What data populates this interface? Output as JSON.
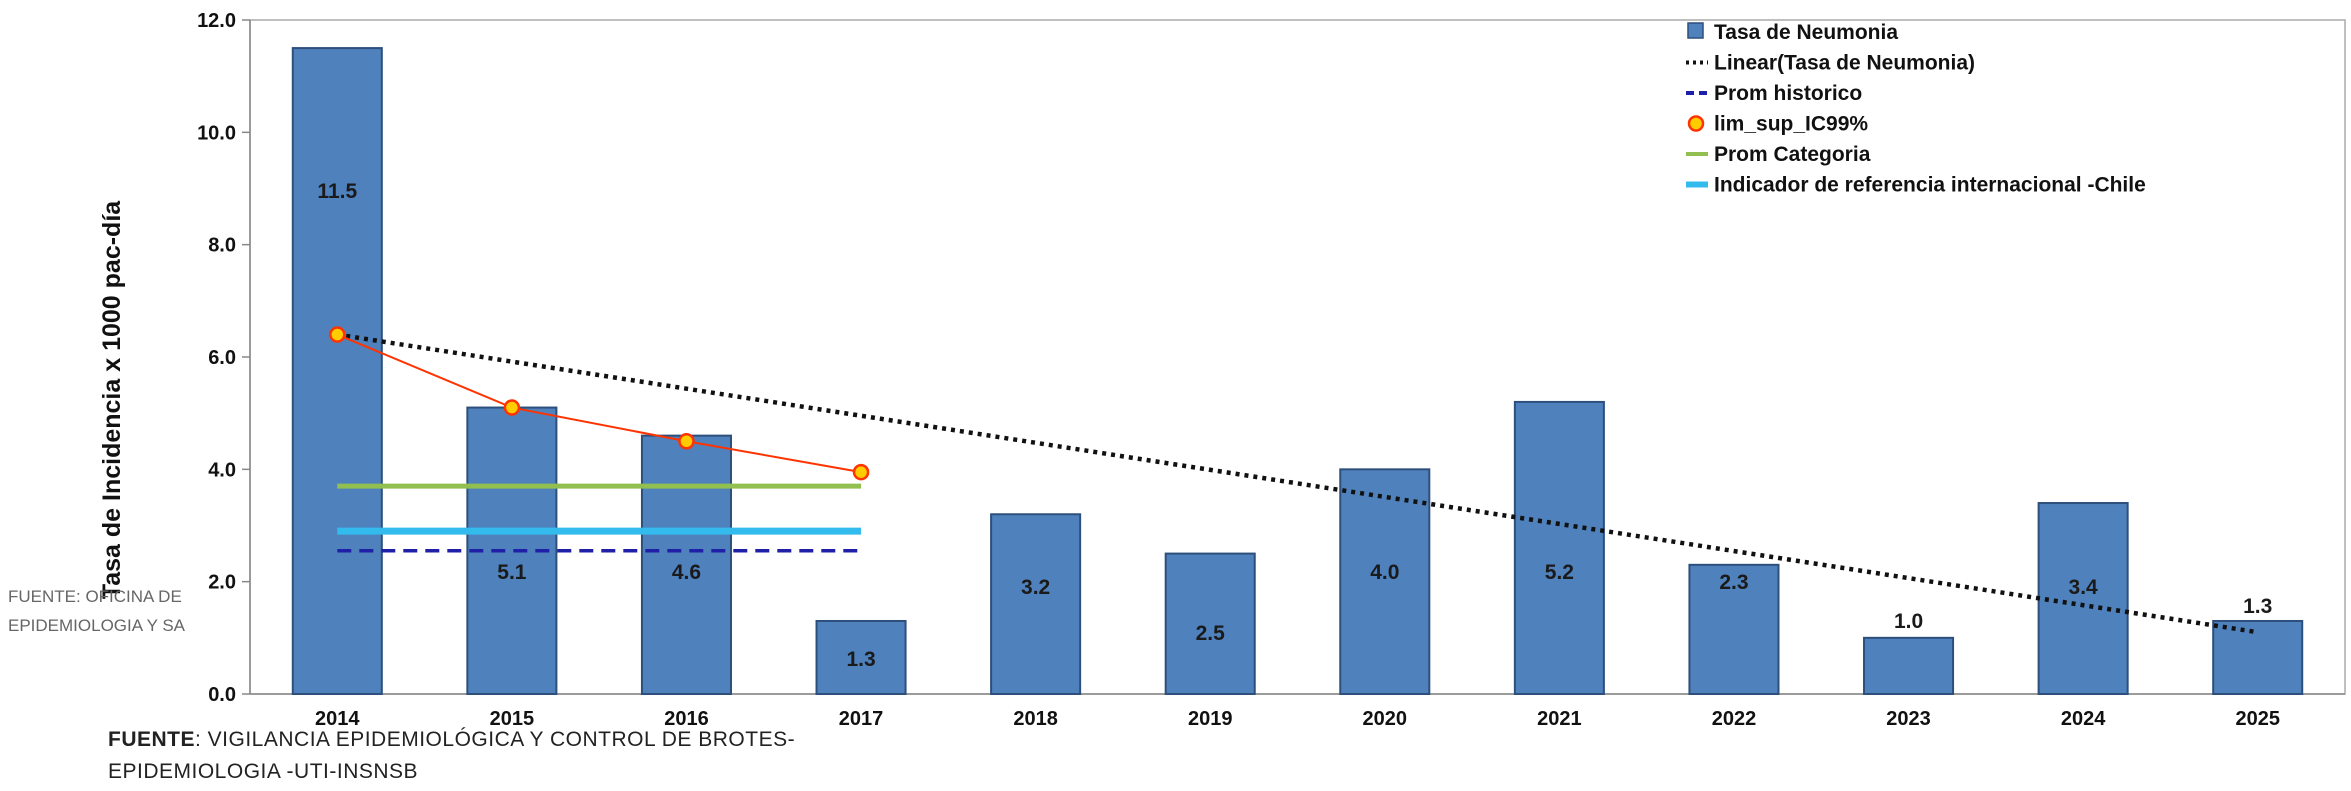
{
  "chart_data": {
    "type": "bar",
    "ylabel": "Tasa de Incidencia x 1000 pac-día",
    "ylim": [
      0,
      12
    ],
    "yticks": [
      "0.0",
      "2.0",
      "4.0",
      "6.0",
      "8.0",
      "10.0",
      "12.0"
    ],
    "categories": [
      "2014",
      "2015",
      "2016",
      "2017",
      "2018",
      "2019",
      "2020",
      "2021",
      "2022",
      "2023",
      "2024",
      "2025"
    ],
    "series": [
      {
        "name": "Tasa de Neumonia",
        "type": "bar",
        "color": "#4f81bd",
        "values": [
          11.5,
          5.1,
          4.6,
          1.3,
          3.2,
          2.5,
          4.0,
          5.2,
          2.3,
          1.0,
          3.4,
          1.3
        ],
        "labels": [
          "11.5",
          "5.1",
          "4.6",
          "1.3",
          "3.2",
          "2.5",
          "4.0",
          "5.2",
          "2.3",
          "1.0",
          "3.4",
          "1.3"
        ]
      },
      {
        "name": "Linear(Tasa de Neumonia)",
        "type": "line",
        "style": "dotted",
        "color": "#111111",
        "x": [
          "2014",
          "2025"
        ],
        "values": [
          6.4,
          1.1
        ]
      },
      {
        "name": "Prom historico",
        "type": "line",
        "style": "dashed",
        "color": "#1f1fa8",
        "x": [
          "2014",
          "2017"
        ],
        "values": [
          2.55,
          2.55
        ]
      },
      {
        "name": "lim_sup_IC99%",
        "type": "line",
        "marker": "circle",
        "color": "#ff3300",
        "marker_fill": "#ffcc00",
        "x": [
          "2014",
          "2015",
          "2016",
          "2017"
        ],
        "values": [
          6.4,
          5.1,
          4.5,
          3.95
        ]
      },
      {
        "name": "Prom Categoria",
        "type": "line",
        "color": "#92c050",
        "x": [
          "2014",
          "2017"
        ],
        "values": [
          3.7,
          3.7
        ]
      },
      {
        "name": "Indicador de referencia internacional -Chile",
        "type": "line",
        "color": "#33bbee",
        "x": [
          "2014",
          "2017"
        ],
        "values": [
          2.9,
          2.9
        ]
      }
    ],
    "legend_position": "top-right",
    "grid": false
  },
  "legend": {
    "items": [
      "Tasa de Neumonia",
      "Linear(Tasa de Neumonia)",
      "Prom historico",
      "lim_sup_IC99%",
      "Prom Categoria",
      "Indicador de referencia internacional -Chile"
    ]
  },
  "overlay_note": [
    "FUENTE: OFICINA DE",
    "EPIDEMIOLOGIA Y SA"
  ],
  "source": {
    "label": "FUENTE",
    "line1": ": VIGILANCIA EPIDEMIOLÓGICA Y CONTROL DE BROTES-",
    "line2": "EPIDEMIOLOGIA  -UTI-INSNSB"
  }
}
